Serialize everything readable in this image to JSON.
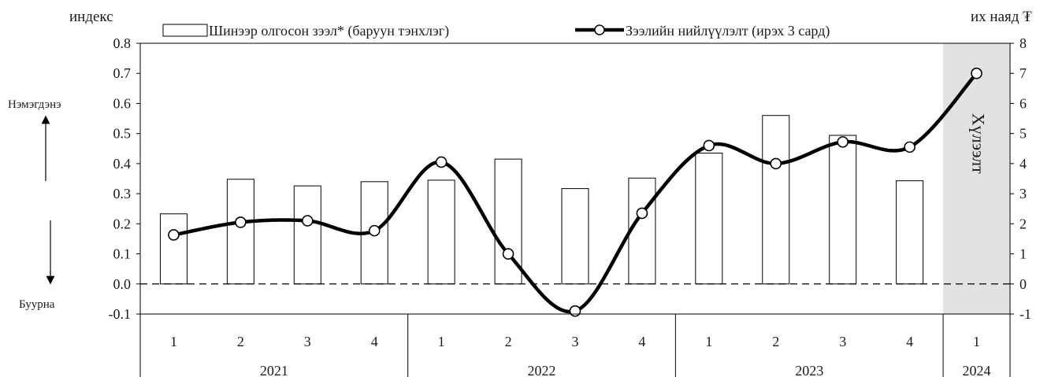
{
  "chart_data": {
    "type": "bar+line",
    "title": "",
    "left_axis": {
      "label": "индекс",
      "min": -0.1,
      "max": 0.8,
      "step": 0.1,
      "ticks": [
        "-0.1",
        "0.0",
        "0.1",
        "0.2",
        "0.3",
        "0.4",
        "0.5",
        "0.6",
        "0.7",
        "0.8"
      ]
    },
    "right_axis": {
      "label": "их наяд ₮",
      "min": -1,
      "max": 8,
      "step": 1,
      "ticks": [
        "-1",
        "0",
        "1",
        "2",
        "3",
        "4",
        "5",
        "6",
        "7",
        "8"
      ]
    },
    "categories": [
      "1",
      "2",
      "3",
      "4",
      "1",
      "2",
      "3",
      "4",
      "1",
      "2",
      "3",
      "4",
      "1"
    ],
    "years": [
      {
        "label": "2021",
        "span": 4
      },
      {
        "label": "2022",
        "span": 4
      },
      {
        "label": "2023",
        "span": 4
      },
      {
        "label": "2024",
        "span": 1
      }
    ],
    "series": [
      {
        "name": "Шинээр олгосон зээл* (баруун тэнхлэг)",
        "type": "bar",
        "axis": "right",
        "values": [
          2.33,
          3.48,
          3.26,
          3.4,
          3.45,
          4.15,
          3.17,
          3.52,
          4.35,
          5.6,
          4.94,
          3.43,
          null
        ]
      },
      {
        "name": "Зээлийн нийлүүлэлт (ирэх 3 сард)",
        "type": "line",
        "axis": "left",
        "values": [
          0.163,
          0.205,
          0.21,
          0.177,
          0.405,
          0.1,
          -0.09,
          0.235,
          0.46,
          0.4,
          0.472,
          0.455,
          0.7
        ]
      }
    ],
    "forecast": {
      "label": "Хүлээлт",
      "from_index": 12
    },
    "side_labels": {
      "up": "Нэмэгдэнэ",
      "down": "Буурна"
    },
    "legend_position": "top"
  }
}
